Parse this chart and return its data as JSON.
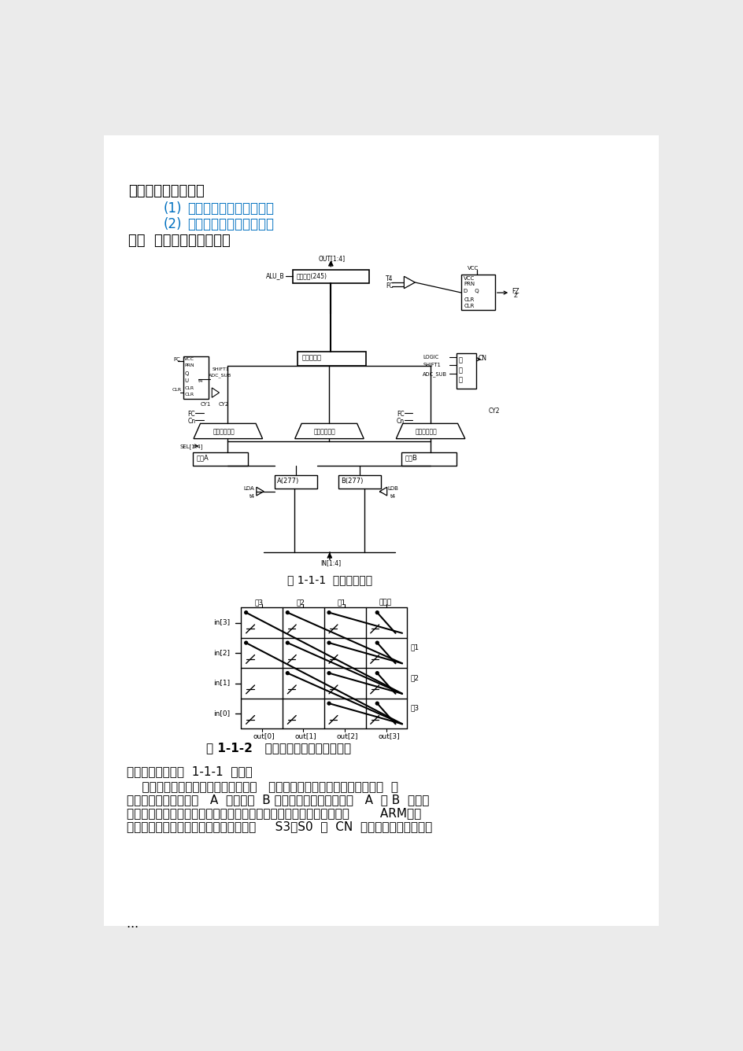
{
  "bg_color": "#ebebeb",
  "page_bg": "#ffffff",
  "section1_text": "一．实验目的及要求",
  "item1_num": "(1)",
  "item1_text": "了解运算器的组成结构。",
  "item2_num": "(2)",
  "item2_text": "掌握运算器的工作原理。",
  "section2_text": "二．  实验模块及实验原理",
  "fig1_caption": "图 1-1-1  运算器原理图",
  "fig2_caption": "图 1-1-2   交叉开关桶形移位器原理图",
  "para1": "本实验的原理如图  1-1-1  所示。",
  "para2_1": "    运算器内部含有三个独立运算部件，   分别为算术、逻辑和移位运算部件，  要",
  "para2_2": "处理的数据存于暂存器   A  和暂存器  B ，三个部件同时接受来自   A  和 B  的数据",
  "para2_3": "（有些处理器体系结构把移位运算器放于算术和逻辑运算部件之前，如        ARM），",
  "para2_4": "各部件对操作数进行何种运算由控制信号     S3，S0  和  CN  来决定，任何时候，多",
  "ellipsis": "…",
  "item_color": "#0070c0",
  "col_labels": [
    "右3",
    "右2",
    "右1",
    "不移位"
  ],
  "row_labels": [
    "in[3]",
    "in[2]",
    "in[1]",
    "in[0]"
  ],
  "out_labels": [
    "out[0]",
    "out[1]",
    "out[2]",
    "out[3]"
  ],
  "right_labels": [
    "左1",
    "左2",
    "左3"
  ]
}
